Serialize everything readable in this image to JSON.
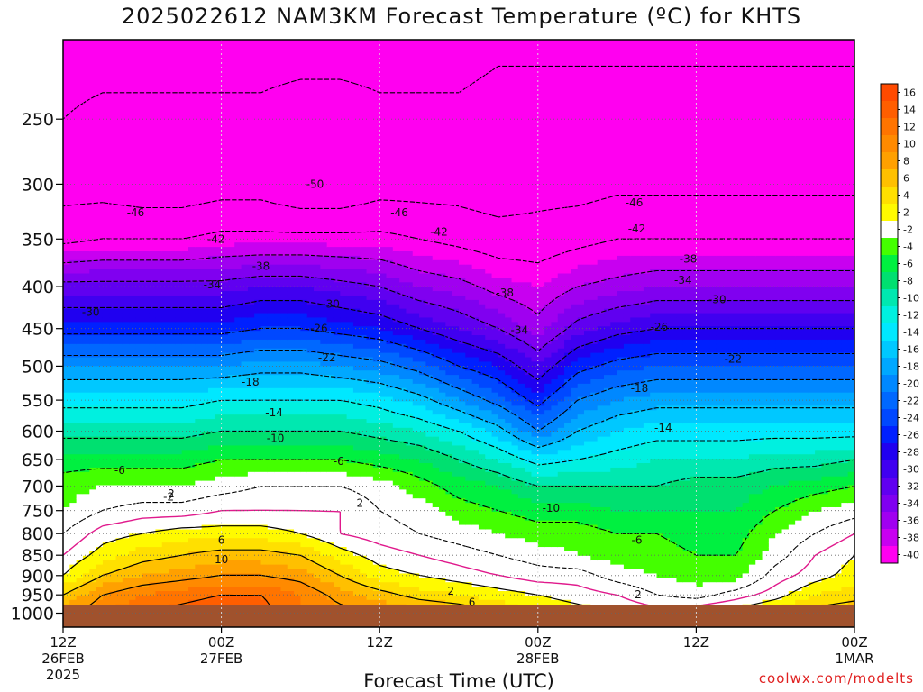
{
  "chart_data": {
    "type": "heatmap",
    "title": "2025022612 NAM3KM Forecast Temperature (ºC) for KHTS",
    "xlabel": "Forecast Time (UTC)",
    "y_log": true,
    "ylim": [
      1040,
      200
    ],
    "xlim": [
      0,
      60
    ],
    "y_ticks": [
      250,
      300,
      350,
      400,
      450,
      500,
      550,
      600,
      650,
      700,
      750,
      800,
      850,
      900,
      950,
      1000
    ],
    "x_ticks": [
      {
        "hour": 0,
        "l1": "12Z",
        "l2": "26FEB",
        "l3": "2025"
      },
      {
        "hour": 12,
        "l1": "00Z",
        "l2": "27FEB",
        "l3": ""
      },
      {
        "hour": 24,
        "l1": "12Z",
        "l2": "",
        "l3": ""
      },
      {
        "hour": 36,
        "l1": "00Z",
        "l2": "28FEB",
        "l3": ""
      },
      {
        "hour": 48,
        "l1": "12Z",
        "l2": "",
        "l3": ""
      },
      {
        "hour": 60,
        "l1": "00Z",
        "l2": "1MAR",
        "l3": ""
      }
    ],
    "colorbar": {
      "levels": [
        16,
        14,
        12,
        10,
        8,
        6,
        4,
        2,
        -2,
        -4,
        -6,
        -8,
        -10,
        -12,
        -14,
        -16,
        -18,
        -20,
        -22,
        -24,
        -26,
        -28,
        -30,
        -32,
        -34,
        -36,
        -38,
        -40
      ],
      "labels": [
        "16",
        "14",
        "12",
        "10",
        "8",
        "6",
        "4",
        "2",
        "-2",
        "-4",
        "-6",
        "-8",
        "-10",
        "-12",
        "-14",
        "-16",
        "-18",
        "-20",
        "-22",
        "-24",
        "-26",
        "-28",
        "-30",
        "-32",
        "-34",
        "-36",
        "-38",
        "-40"
      ],
      "colors": [
        "#ff4a00",
        "#ff5e00",
        "#ff7400",
        "#ff8a00",
        "#ffa000",
        "#ffc000",
        "#ffe000",
        "#fffa00",
        "#ffffff",
        "#44ff00",
        "#00f040",
        "#00e070",
        "#00e8b0",
        "#00f0e0",
        "#00e8ff",
        "#00c8ff",
        "#00a8ff",
        "#0088ff",
        "#0068ff",
        "#0048ff",
        "#0020ff",
        "#2000f0",
        "#4000f0",
        "#6000f0",
        "#8000f0",
        "#a000f0",
        "#c800f0",
        "#ff00f0"
      ]
    },
    "sounding_hours": [
      0,
      3,
      6,
      9,
      12,
      15,
      18,
      21,
      24,
      27,
      30,
      33,
      36,
      39,
      42,
      45,
      48,
      51,
      54,
      57,
      60
    ],
    "sounding_pressures": [
      1000,
      950,
      900,
      850,
      800,
      750,
      700,
      650,
      600,
      550,
      500,
      450,
      400,
      350,
      300,
      250,
      200
    ],
    "temperature": [
      [
        9,
        6,
        2,
        0,
        -2,
        -4,
        -5,
        -7,
        -11,
        -15,
        -20,
        -27,
        -33,
        -43,
        -48,
        -46,
        -44
      ],
      [
        12,
        10,
        6,
        3,
        1,
        -2,
        -4,
        -7,
        -11,
        -15,
        -20,
        -27,
        -33,
        -42,
        -48,
        -47,
        -44
      ],
      [
        14,
        12,
        8,
        5,
        2,
        -1,
        -4,
        -7,
        -11,
        -15,
        -20,
        -27,
        -33,
        -42,
        -49,
        -47,
        -44
      ],
      [
        15,
        13,
        9,
        6,
        3,
        -1,
        -4,
        -7,
        -11,
        -15,
        -20,
        -27,
        -33,
        -42,
        -49,
        -47,
        -44
      ],
      [
        16,
        14,
        10,
        7,
        3,
        0,
        -3,
        -6,
        -10,
        -14,
        -20,
        -27,
        -33,
        -41,
        -48,
        -47,
        -44
      ],
      [
        15,
        14,
        10,
        7,
        3,
        0,
        -2,
        -6,
        -10,
        -14,
        -19,
        -26,
        -32,
        -41,
        -48,
        -47,
        -44
      ],
      [
        12,
        12,
        9,
        6,
        2,
        0,
        -2,
        -6,
        -10,
        -14,
        -19,
        -26,
        -32,
        -41,
        -50,
        -48,
        -44
      ],
      [
        11,
        9,
        6,
        3,
        0,
        0,
        -2,
        -6,
        -10,
        -14,
        -20,
        -27,
        -33,
        -41,
        -50,
        -48,
        -44
      ],
      [
        10,
        7,
        3,
        1,
        -1,
        -2,
        -3,
        -7,
        -11,
        -15,
        -21,
        -28,
        -34,
        -41,
        -48,
        -47,
        -44
      ],
      [
        9,
        5,
        2,
        0,
        -2,
        -3,
        -5,
        -8,
        -12,
        -17,
        -23,
        -30,
        -36,
        -42,
        -48,
        -47,
        -44
      ],
      [
        8,
        4,
        1,
        -1,
        -3,
        -5,
        -7,
        -10,
        -14,
        -20,
        -26,
        -32,
        -37,
        -43,
        -48,
        -47,
        -44
      ],
      [
        6,
        3,
        0,
        -2,
        -4,
        -6,
        -8,
        -12,
        -17,
        -23,
        -28,
        -34,
        -39,
        -44,
        -49,
        -48,
        -45
      ],
      [
        4,
        2,
        -1,
        -3,
        -5,
        -7,
        -10,
        -15,
        -22,
        -27,
        -32,
        -37,
        -40,
        -44,
        -48,
        -48,
        -45
      ],
      [
        3,
        1,
        -1,
        -4,
        -5,
        -7,
        -10,
        -14,
        -18,
        -22,
        -27,
        -33,
        -38,
        -43,
        -48,
        -48,
        -45
      ],
      [
        2,
        0,
        -3,
        -5,
        -6,
        -8,
        -10,
        -13,
        -16,
        -20,
        -25,
        -31,
        -37,
        -42,
        -47,
        -48,
        -45
      ],
      [
        1,
        -2,
        -4,
        -5,
        -6,
        -8,
        -10,
        -12,
        -15,
        -19,
        -24,
        -30,
        -36,
        -42,
        -47,
        -48,
        -45
      ],
      [
        2,
        -3,
        -5,
        -6,
        -7,
        -8,
        -9,
        -12,
        -15,
        -19,
        -24,
        -30,
        -36,
        -42,
        -47,
        -48,
        -45
      ],
      [
        3,
        -1,
        -5,
        -6,
        -7,
        -8,
        -9,
        -12,
        -15,
        -19,
        -24,
        -30,
        -36,
        -42,
        -47,
        -48,
        -45
      ],
      [
        5,
        1,
        -1,
        -3,
        -4,
        -6,
        -8,
        -11,
        -15,
        -19,
        -24,
        -30,
        -36,
        -42,
        -47,
        -48,
        -45
      ],
      [
        7,
        4,
        1,
        0,
        -2,
        -4,
        -7,
        -11,
        -15,
        -19,
        -24,
        -30,
        -36,
        -42,
        -47,
        -48,
        -45
      ],
      [
        8,
        5,
        3,
        2,
        0,
        -3,
        -6,
        -10,
        -15,
        -19,
        -24,
        -30,
        -36,
        -42,
        -47,
        -48,
        -45
      ]
    ],
    "contour_labels": [
      {
        "t": "-46",
        "h": 5.5,
        "p": 325
      },
      {
        "t": "-46",
        "h": 25.5,
        "p": 325
      },
      {
        "t": "-46",
        "h": 43.3,
        "p": 316
      },
      {
        "t": "-50",
        "h": 19.1,
        "p": 300
      },
      {
        "t": "-42",
        "h": 11.6,
        "p": 350
      },
      {
        "t": "-42",
        "h": 28.5,
        "p": 343
      },
      {
        "t": "-42",
        "h": 43.5,
        "p": 340
      },
      {
        "t": "-38",
        "h": 15.0,
        "p": 378
      },
      {
        "t": "-38",
        "h": 33.5,
        "p": 407
      },
      {
        "t": "-38",
        "h": 47.4,
        "p": 370
      },
      {
        "t": "-34",
        "h": 11.3,
        "p": 398
      },
      {
        "t": "-34",
        "h": 34.6,
        "p": 452
      },
      {
        "t": "-34",
        "h": 47.0,
        "p": 393
      },
      {
        "t": "-30",
        "h": 2.1,
        "p": 430
      },
      {
        "t": "-30",
        "h": 20.3,
        "p": 420
      },
      {
        "t": "-30",
        "h": 49.6,
        "p": 415
      },
      {
        "t": "-26",
        "h": 19.4,
        "p": 450
      },
      {
        "t": "-26",
        "h": 45.2,
        "p": 448
      },
      {
        "t": "-22",
        "h": 20.0,
        "p": 488
      },
      {
        "t": "-22",
        "h": 50.8,
        "p": 490
      },
      {
        "t": "-18",
        "h": 14.2,
        "p": 523
      },
      {
        "t": "-18",
        "h": 43.7,
        "p": 532
      },
      {
        "t": "-14",
        "h": 16.0,
        "p": 570
      },
      {
        "t": "-14",
        "h": 45.5,
        "p": 595
      },
      {
        "t": "-10",
        "h": 16.1,
        "p": 612
      },
      {
        "t": "-10",
        "h": 37.0,
        "p": 745
      },
      {
        "t": "-6",
        "h": 4.3,
        "p": 670
      },
      {
        "t": "-6",
        "h": 20.9,
        "p": 653
      },
      {
        "t": "-6",
        "h": 43.5,
        "p": 815
      },
      {
        "t": "-2",
        "h": 8.0,
        "p": 722
      },
      {
        "t": "2",
        "h": 8.2,
        "p": 715
      },
      {
        "t": "2",
        "h": 22.5,
        "p": 735
      },
      {
        "t": "2",
        "h": 29.4,
        "p": 940
      },
      {
        "t": "2",
        "h": 43.6,
        "p": 950
      },
      {
        "t": "6",
        "h": 12.0,
        "p": 815
      },
      {
        "t": "6",
        "h": 31.0,
        "p": 970
      },
      {
        "t": "10",
        "h": 12.0,
        "p": 860
      }
    ]
  }
}
